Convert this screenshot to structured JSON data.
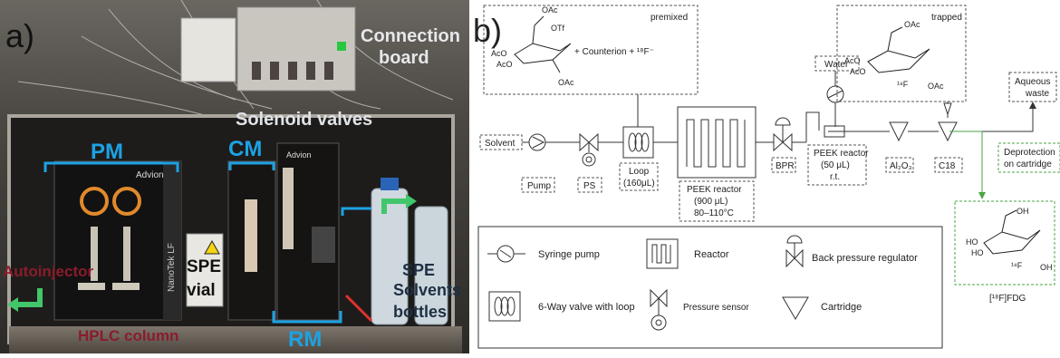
{
  "panel_a": {
    "label": "a)",
    "overlay_labels": {
      "connection_board": [
        "Connection",
        "board"
      ],
      "solenoid_valves": "Solenoid valves",
      "pm": "PM",
      "cm": "CM",
      "rm": "RM",
      "autoinjector": "Autoinjector",
      "spe_vial": [
        "SPE",
        "vial"
      ],
      "spe_solvents": [
        "SPE",
        "Solvents",
        "bottles"
      ],
      "hplc_column": "HPLC column",
      "advion_1": "Advion",
      "advion_2": "Advion",
      "nanotek": "NanoTek LF"
    },
    "colors": {
      "blue_label": "#1da2e4",
      "red_label": "#8a1c2c",
      "green_arrow": "#42c66b"
    }
  },
  "panel_b": {
    "label": "b)",
    "premixed": {
      "tag": "premixed",
      "text": "+ Counterion + ¹⁸F⁻",
      "substituents": [
        "OAc",
        "OTf",
        "AcO",
        "AcO",
        "OAc"
      ]
    },
    "trapped": {
      "tag": "trapped",
      "substituents": [
        "OAc",
        "AcO",
        "AcO",
        "¹⁸F",
        "OAc"
      ]
    },
    "fdg": {
      "name": "[¹⁸F]FDG",
      "substituents": [
        "OH",
        "HO",
        "HO",
        "¹⁸F",
        "OH"
      ]
    },
    "flow": {
      "solvent": "Solvent",
      "water": "Water",
      "aqueous_waste": [
        "Aqueous",
        "waste"
      ],
      "deprotection": [
        "Deprotection",
        "on cartridge"
      ],
      "pump": "Pump",
      "ps": "PS",
      "loop": [
        "Loop",
        "(160μL)"
      ],
      "peek_big": [
        "PEEK reactor",
        "(900 μL)",
        "80–110°C"
      ],
      "bpr": "BPR",
      "peek_small": [
        "PEEK reactor",
        "(50 μL)",
        "r.t."
      ],
      "al2o3": "Al₂O₃",
      "c18": "C18"
    },
    "legend": [
      {
        "icon": "syringe-pump",
        "label": "Syringe pump"
      },
      {
        "icon": "reactor",
        "label": "Reactor"
      },
      {
        "icon": "back-pressure-regulator",
        "label": "Back pressure regulator"
      },
      {
        "icon": "six-way-valve",
        "label": "6-Way valve with loop"
      },
      {
        "icon": "pressure-sensor",
        "label": "Pressure sensor"
      },
      {
        "icon": "cartridge",
        "label": "Cartridge"
      }
    ],
    "colors": {
      "line": "#333333",
      "green": "#4aa544",
      "dash": "#555555"
    }
  }
}
